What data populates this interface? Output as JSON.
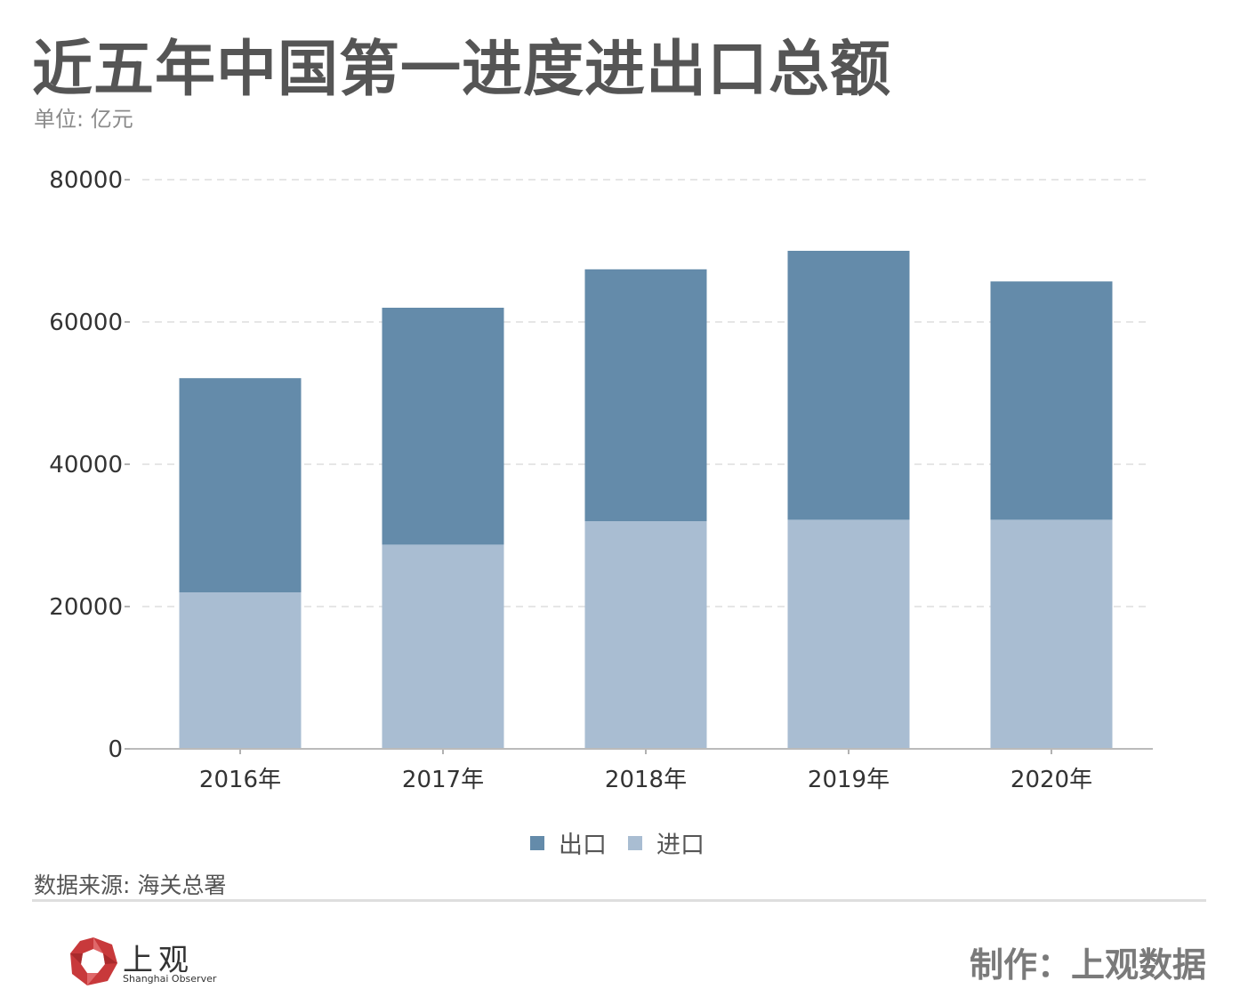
{
  "header": {
    "title": "近五年中国第一进度进出口总额",
    "unit": "单位: 亿元"
  },
  "chart_data": {
    "type": "bar",
    "stacked": true,
    "title": "近五年中国第一进度进出口总额",
    "ylabel": "单位: 亿元",
    "xlabel": "",
    "categories": [
      "2016年",
      "2017年",
      "2018年",
      "2019年",
      "2020年"
    ],
    "series": [
      {
        "name": "进口",
        "color": "#a9bdd2",
        "values": [
          22000,
          28700,
          32000,
          32200,
          32200
        ]
      },
      {
        "name": "出口",
        "color": "#648baa",
        "values": [
          30100,
          33300,
          35400,
          37800,
          33500
        ]
      }
    ],
    "yticks": [
      0,
      20000,
      40000,
      60000,
      80000
    ],
    "ylim": [
      0,
      80000
    ],
    "grid": true,
    "legend_order": [
      "出口",
      "进口"
    ],
    "legend_position": "bottom-center"
  },
  "footer": {
    "source": "数据来源: 海关总署",
    "logo_cn": "上观",
    "logo_en": "Shanghai Observer",
    "credit": "制作：上观数据"
  }
}
